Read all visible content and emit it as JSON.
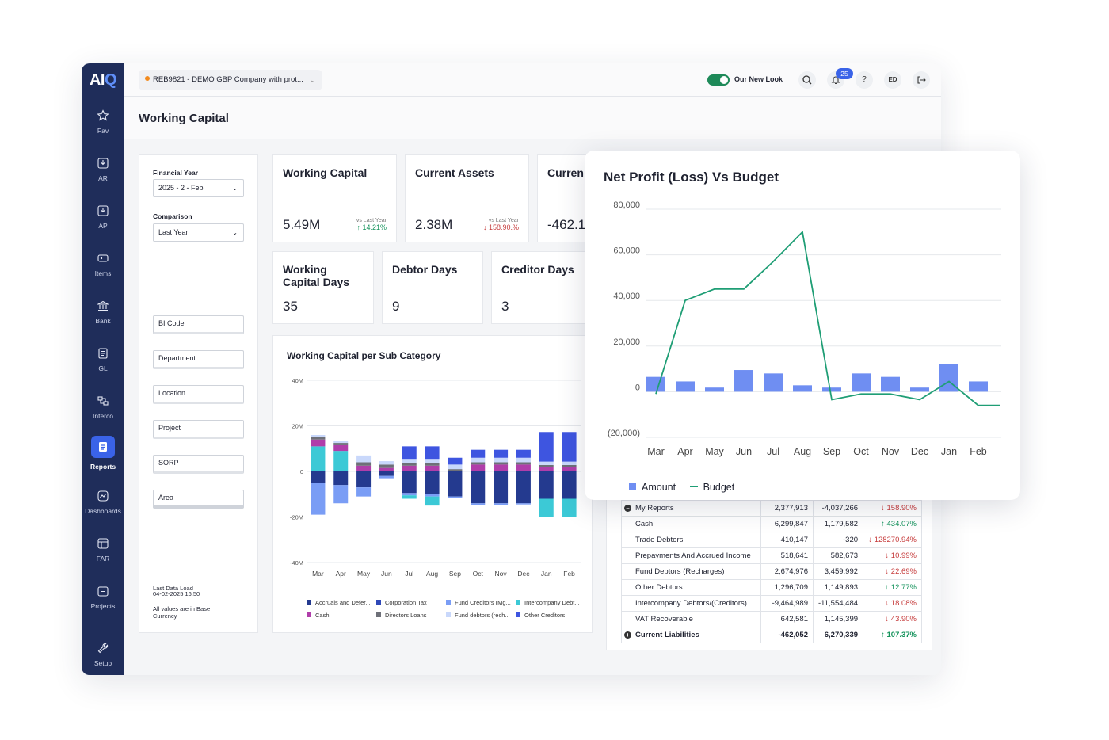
{
  "sidebar": {
    "logo_a": "AI",
    "logo_b": "Q",
    "items": [
      {
        "label": "Fav",
        "icon": "star-icon"
      },
      {
        "label": "AR",
        "icon": "inbox-icon"
      },
      {
        "label": "AP",
        "icon": "inbox-out-icon"
      },
      {
        "label": "Items",
        "icon": "tag-icon"
      },
      {
        "label": "Bank",
        "icon": "bank-icon"
      },
      {
        "label": "GL",
        "icon": "ledger-icon"
      },
      {
        "label": "Interco",
        "icon": "interco-icon"
      },
      {
        "label": "Reports",
        "icon": "report-icon",
        "active": true
      },
      {
        "label": "Dashboards",
        "icon": "dashboard-icon"
      },
      {
        "label": "FAR",
        "icon": "asset-register-icon"
      },
      {
        "label": "Projects",
        "icon": "projects-icon"
      },
      {
        "label": "Setup",
        "icon": "wrench-icon"
      }
    ]
  },
  "topbar": {
    "company": "REB9821 - DEMO GBP Company with prot...",
    "toggle_label": "Our New Look",
    "notifications": "25",
    "help": "?",
    "user_initials": "ED"
  },
  "page": {
    "title": "Working Capital"
  },
  "filters": {
    "financial_year_label": "Financial Year",
    "financial_year_value": "2025 - 2 - Feb",
    "comparison_label": "Comparison",
    "comparison_value": "Last Year",
    "inputs": [
      "BI Code",
      "Department",
      "Location",
      "Project",
      "SORP",
      "Area"
    ],
    "last_load_label": "Last Data Load",
    "last_load_value": "04-02-2025 16:50",
    "currency_note": "All values are in Base Currency"
  },
  "kpis": {
    "working_capital": {
      "title": "Working Capital",
      "value": "5.49M",
      "cmp_label": "vs Last Year",
      "change": "↑ 14.21%"
    },
    "current_assets": {
      "title": "Current Assets",
      "value": "2.38M",
      "cmp_label": "vs Last Year",
      "change": "↓ 158.90.%"
    },
    "current_liabilities": {
      "title": "Curren",
      "value": "-462.1"
    },
    "wc_days": {
      "title": "Working Capital Days",
      "value": "35"
    },
    "debtor_days": {
      "title": "Debtor Days",
      "value": "9"
    },
    "creditor_days": {
      "title": "Creditor Days",
      "value": "3"
    }
  },
  "subcat_chart": {
    "title": "Working Capital per Sub Category",
    "legend": [
      {
        "name": "Accruals and Defer...",
        "color": "#243a8f"
      },
      {
        "name": "Corporation Tax",
        "color": "#2f48b8"
      },
      {
        "name": "Fund Creditors (Mg...",
        "color": "#7a9df5"
      },
      {
        "name": "Intercompany Debt...",
        "color": "#3cc9d6"
      },
      {
        "name": "Cash",
        "color": "#b03eaa"
      },
      {
        "name": "Directors Loans",
        "color": "#6e7078"
      },
      {
        "name": "Fund debtors (rech...",
        "color": "#c9d8fb"
      },
      {
        "name": "Other Creditors",
        "color": "#3e55e0"
      }
    ]
  },
  "chart_data": [
    {
      "type": "bar",
      "title": "Working Capital per Sub Category",
      "stacked": true,
      "y_unit": "M",
      "ylim": [
        -40,
        40
      ],
      "yticks": [
        "40M",
        "20M",
        "0",
        "-20M",
        "-40M"
      ],
      "yticks_values": [
        40,
        20,
        0,
        -20,
        -40
      ],
      "categories": [
        "Mar",
        "Apr",
        "May",
        "Jun",
        "Jul",
        "Aug",
        "Sep",
        "Oct",
        "Nov",
        "Dec",
        "Jan",
        "Feb"
      ],
      "series": [
        {
          "name": "Accruals and Defer...",
          "color": "#243a8f",
          "values": [
            -5,
            -6,
            -7,
            -2,
            -9.5,
            -10,
            -11,
            -14,
            -14,
            -14,
            -12,
            -12
          ]
        },
        {
          "name": "Corporation Tax",
          "color": "#2f48b8",
          "values": [
            0,
            0,
            0,
            0,
            0,
            0,
            0,
            0,
            0,
            0,
            0,
            0
          ]
        },
        {
          "name": "Fund Creditors (Mg...",
          "color": "#7a9df5",
          "values": [
            -14,
            -8,
            -4,
            -1,
            -1,
            -1,
            -0.5,
            -0.8,
            -0.8,
            -0.5,
            0,
            0
          ]
        },
        {
          "name": "Intercompany Debt...",
          "color": "#3cc9d6",
          "values": [
            11,
            9,
            0,
            0,
            -1.5,
            -4,
            0,
            0,
            0,
            0,
            -8,
            -8
          ]
        },
        {
          "name": "Cash",
          "color": "#b03eaa",
          "values": [
            3,
            2.5,
            2.5,
            1.5,
            2.5,
            2.5,
            0,
            3,
            3,
            3,
            2,
            2
          ]
        },
        {
          "name": "Directors Loans",
          "color": "#6e7078",
          "values": [
            1,
            1,
            1.5,
            1.5,
            1,
            1,
            1,
            1,
            1,
            1,
            0.8,
            0.8
          ]
        },
        {
          "name": "Fund debtors (rech...",
          "color": "#c9d8fb",
          "values": [
            1,
            1,
            3,
            1.5,
            2,
            2,
            2,
            2,
            2,
            2,
            1.5,
            1.5
          ]
        },
        {
          "name": "Other Creditors",
          "color": "#3e55e0",
          "values": [
            0,
            0,
            0,
            0,
            5.5,
            5.5,
            3,
            3.5,
            3.5,
            3.5,
            13,
            13
          ]
        }
      ]
    },
    {
      "type": "bar",
      "title": "Net Profit (Loss) Vs Budget",
      "ylim": [
        -20000,
        80000
      ],
      "yticks": [
        "80,000",
        "60,000",
        "40,000",
        "20,000",
        "0",
        "(20,000)"
      ],
      "yticks_values": [
        80000,
        60000,
        40000,
        20000,
        0,
        -20000
      ],
      "categories": [
        "Mar",
        "Apr",
        "May",
        "Jun",
        "Jul",
        "Aug",
        "Sep",
        "Oct",
        "Nov",
        "Dec",
        "Jan",
        "Feb"
      ],
      "series": [
        {
          "name": "Amount",
          "type": "bar",
          "color": "#6f8ef2",
          "values": [
            6500,
            4500,
            1800,
            9500,
            8000,
            2800,
            1800,
            8000,
            6500,
            1800,
            12000,
            4500
          ]
        },
        {
          "name": "Budget",
          "type": "line",
          "color": "#1f9e75",
          "values": [
            -1000,
            40000,
            45000,
            45000,
            57000,
            70000,
            -3500,
            -1000,
            -1000,
            -3500,
            4500,
            -6000
          ]
        }
      ],
      "extra_points": [
        -6000
      ]
    }
  ],
  "overlay": {
    "title": "Net Profit (Loss) Vs Budget",
    "legend_amount": "Amount",
    "legend_budget": "Budget"
  },
  "table": {
    "rows": [
      {
        "label": "My Reports",
        "a": "2,377,913",
        "b": "-4,037,266",
        "chg": "↓ 158.90%",
        "dir": "down",
        "bold": false,
        "toggle": "−"
      },
      {
        "label": "Cash",
        "a": "6,299,847",
        "b": "1,179,582",
        "chg": "↑ 434.07%",
        "dir": "up"
      },
      {
        "label": "Trade Debtors",
        "a": "410,147",
        "b": "-320",
        "chg": "↓ 128270.94%",
        "dir": "down"
      },
      {
        "label": "Prepayments And Accrued Income",
        "a": "518,641",
        "b": "582,673",
        "chg": "↓ 10.99%",
        "dir": "down"
      },
      {
        "label": "Fund Debtors (Recharges)",
        "a": "2,674,976",
        "b": "3,459,992",
        "chg": "↓ 22.69%",
        "dir": "down"
      },
      {
        "label": "Other Debtors",
        "a": "1,296,709",
        "b": "1,149,893",
        "chg": "↑ 12.77%",
        "dir": "up"
      },
      {
        "label": "Intercompany Debtors/(Creditors)",
        "a": "-9,464,989",
        "b": "-11,554,484",
        "chg": "↓ 18.08%",
        "dir": "down"
      },
      {
        "label": "VAT Recoverable",
        "a": "642,581",
        "b": "1,145,399",
        "chg": "↓ 43.90%",
        "dir": "down"
      },
      {
        "label": "Current Liabilities",
        "a": "-462,052",
        "b": "6,270,339",
        "chg": "↑ 107.37%",
        "dir": "up",
        "bold": true,
        "toggle": "+"
      }
    ]
  },
  "colors": {
    "sidebar": "#1f2d5a",
    "accent": "#3a63e8",
    "up": "#15935c",
    "down": "#c63b3b"
  }
}
